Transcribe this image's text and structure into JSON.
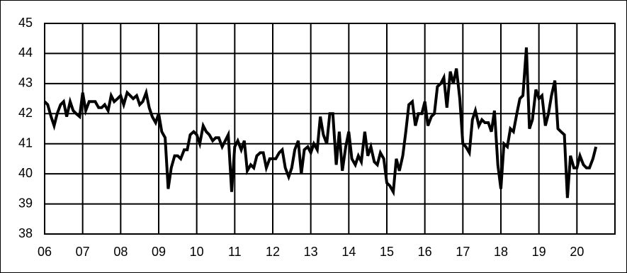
{
  "chart_data": {
    "type": "line",
    "color": "#000000",
    "grid": true,
    "xlim": [
      2006,
      2021
    ],
    "ylim": [
      38,
      45
    ],
    "yticks": [
      38,
      39,
      40,
      41,
      42,
      43,
      44,
      45
    ],
    "xticks": [
      {
        "value": 2006,
        "label": "06"
      },
      {
        "value": 2007,
        "label": "07"
      },
      {
        "value": 2008,
        "label": "08"
      },
      {
        "value": 2009,
        "label": "09"
      },
      {
        "value": 2010,
        "label": "10"
      },
      {
        "value": 2011,
        "label": "11"
      },
      {
        "value": 2012,
        "label": "12"
      },
      {
        "value": 2013,
        "label": "13"
      },
      {
        "value": 2014,
        "label": "14"
      },
      {
        "value": 2015,
        "label": "15"
      },
      {
        "value": 2016,
        "label": "16"
      },
      {
        "value": 2017,
        "label": "17"
      },
      {
        "value": 2018,
        "label": "18"
      },
      {
        "value": 2019,
        "label": "19"
      },
      {
        "value": 2020,
        "label": "20"
      }
    ],
    "x": [
      2006.0,
      2006.08,
      2006.17,
      2006.25,
      2006.33,
      2006.42,
      2006.5,
      2006.58,
      2006.67,
      2006.75,
      2006.83,
      2006.92,
      2007.0,
      2007.08,
      2007.17,
      2007.25,
      2007.33,
      2007.42,
      2007.5,
      2007.58,
      2007.67,
      2007.75,
      2007.83,
      2007.92,
      2008.0,
      2008.08,
      2008.17,
      2008.25,
      2008.33,
      2008.42,
      2008.5,
      2008.58,
      2008.67,
      2008.75,
      2008.83,
      2008.92,
      2009.0,
      2009.08,
      2009.17,
      2009.25,
      2009.33,
      2009.42,
      2009.5,
      2009.58,
      2009.67,
      2009.75,
      2009.83,
      2009.92,
      2010.0,
      2010.08,
      2010.17,
      2010.25,
      2010.33,
      2010.42,
      2010.5,
      2010.58,
      2010.67,
      2010.75,
      2010.83,
      2010.92,
      2011.0,
      2011.08,
      2011.17,
      2011.25,
      2011.33,
      2011.42,
      2011.5,
      2011.58,
      2011.67,
      2011.75,
      2011.83,
      2011.92,
      2012.0,
      2012.08,
      2012.17,
      2012.25,
      2012.33,
      2012.42,
      2012.5,
      2012.58,
      2012.67,
      2012.75,
      2012.83,
      2012.92,
      2013.0,
      2013.08,
      2013.17,
      2013.25,
      2013.33,
      2013.42,
      2013.5,
      2013.58,
      2013.67,
      2013.75,
      2013.83,
      2013.92,
      2014.0,
      2014.08,
      2014.17,
      2014.25,
      2014.33,
      2014.42,
      2014.5,
      2014.58,
      2014.67,
      2014.75,
      2014.83,
      2014.92,
      2015.0,
      2015.08,
      2015.17,
      2015.25,
      2015.33,
      2015.42,
      2015.5,
      2015.58,
      2015.67,
      2015.75,
      2015.83,
      2015.92,
      2016.0,
      2016.08,
      2016.17,
      2016.25,
      2016.33,
      2016.42,
      2016.5,
      2016.58,
      2016.67,
      2016.75,
      2016.83,
      2016.92,
      2017.0,
      2017.08,
      2017.17,
      2017.25,
      2017.33,
      2017.42,
      2017.5,
      2017.58,
      2017.67,
      2017.75,
      2017.83,
      2017.92,
      2018.0,
      2018.08,
      2018.17,
      2018.25,
      2018.33,
      2018.42,
      2018.5,
      2018.58,
      2018.67,
      2018.75,
      2018.83,
      2018.92,
      2019.0,
      2019.08,
      2019.17,
      2019.25,
      2019.33,
      2019.42,
      2019.5,
      2019.58,
      2019.67,
      2019.75,
      2019.83,
      2019.92,
      2020.0,
      2020.08,
      2020.17,
      2020.25,
      2020.33,
      2020.42,
      2020.5
    ],
    "values": [
      42.4,
      42.3,
      41.9,
      41.6,
      42.0,
      42.3,
      42.4,
      41.9,
      42.4,
      42.1,
      42.0,
      41.9,
      42.7,
      42.1,
      42.4,
      42.4,
      42.4,
      42.2,
      42.2,
      42.3,
      42.1,
      42.6,
      42.4,
      42.5,
      42.6,
      42.3,
      42.7,
      42.6,
      42.5,
      42.6,
      42.3,
      42.4,
      42.7,
      42.2,
      41.9,
      41.7,
      42.0,
      41.4,
      41.2,
      39.5,
      40.2,
      40.6,
      40.6,
      40.5,
      40.8,
      40.8,
      41.3,
      41.4,
      41.3,
      41.0,
      41.6,
      41.4,
      41.3,
      41.1,
      41.2,
      41.2,
      40.9,
      41.1,
      41.3,
      39.4,
      40.9,
      41.1,
      40.8,
      41.1,
      40.1,
      40.3,
      40.2,
      40.6,
      40.7,
      40.7,
      40.2,
      40.5,
      40.5,
      40.5,
      40.7,
      40.8,
      40.2,
      39.9,
      40.2,
      40.8,
      41.1,
      40.0,
      40.8,
      40.9,
      40.7,
      41.0,
      40.8,
      41.9,
      41.3,
      41.0,
      42.0,
      42.0,
      40.3,
      41.4,
      40.1,
      40.9,
      41.4,
      40.5,
      40.3,
      40.6,
      40.4,
      41.4,
      40.6,
      40.9,
      40.4,
      40.3,
      40.7,
      40.5,
      39.7,
      39.6,
      39.4,
      40.5,
      40.1,
      40.6,
      41.4,
      42.3,
      42.4,
      41.6,
      42.0,
      42.0,
      42.4,
      41.6,
      41.9,
      42.0,
      42.9,
      43.0,
      43.2,
      42.2,
      43.4,
      43.0,
      43.5,
      42.5,
      41.0,
      40.9,
      40.7,
      41.8,
      42.1,
      41.6,
      41.8,
      41.7,
      41.7,
      41.4,
      42.1,
      40.3,
      39.5,
      41.0,
      40.9,
      41.5,
      41.4,
      42.0,
      42.5,
      42.6,
      44.2,
      41.5,
      41.8,
      42.8,
      42.5,
      42.6,
      41.6,
      42.0,
      42.6,
      43.1,
      41.5,
      41.4,
      41.3,
      39.2,
      40.6,
      40.2,
      40.2,
      40.6,
      40.3,
      40.2,
      40.2,
      40.5,
      40.9
    ]
  }
}
